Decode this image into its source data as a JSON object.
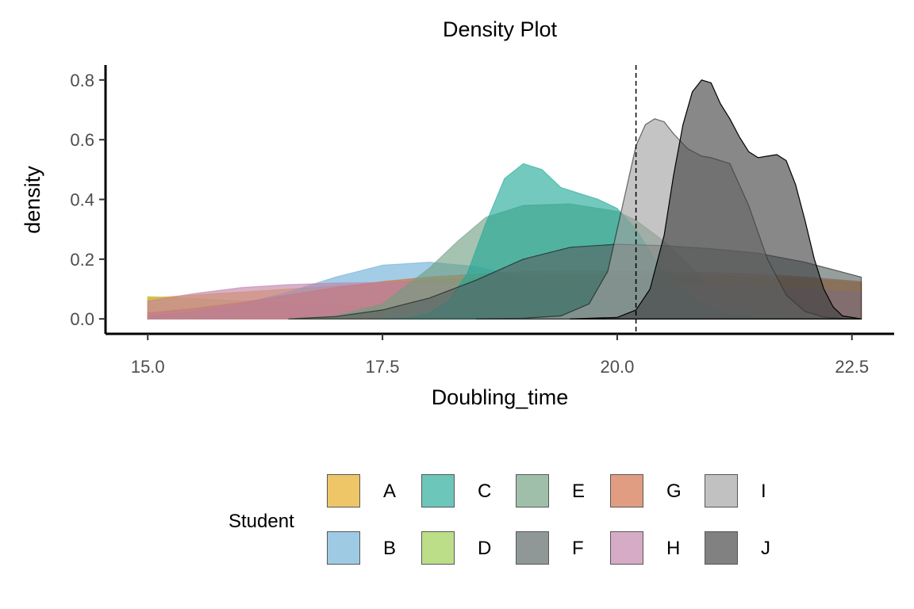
{
  "chart_data": {
    "type": "area",
    "title": "Density Plot",
    "xlabel": "Doubling_time",
    "ylabel": "density",
    "xlim": [
      14.55,
      22.95
    ],
    "ylim": [
      -0.05,
      0.85
    ],
    "xticks": [
      15.0,
      17.5,
      20.0,
      22.5
    ],
    "xtick_labels": [
      "15.0",
      "17.5",
      "20.0",
      "22.5"
    ],
    "yticks": [
      0.0,
      0.2,
      0.4,
      0.6,
      0.8
    ],
    "ytick_labels": [
      "0.0",
      "0.2",
      "0.4",
      "0.6",
      "0.8"
    ],
    "reference_line_x": 20.2,
    "grid": false,
    "legend_title": "Student",
    "legend_position": "bottom",
    "series": [
      {
        "name": "A",
        "color": "#E6A817",
        "x": [
          15.0,
          16.0,
          17.0,
          18.0,
          19.0,
          20.0,
          21.0,
          22.0,
          22.6
        ],
        "y": [
          0.07,
          0.09,
          0.11,
          0.13,
          0.145,
          0.15,
          0.145,
          0.135,
          0.12
        ]
      },
      {
        "name": "B",
        "color": "#6BAED6",
        "x": [
          15.0,
          15.5,
          16.0,
          16.5,
          17.0,
          17.5,
          18.0,
          18.5,
          19.0,
          19.5,
          20.0,
          20.5,
          21.0,
          21.5,
          22.0,
          22.6
        ],
        "y": [
          0.01,
          0.025,
          0.05,
          0.09,
          0.14,
          0.18,
          0.19,
          0.175,
          0.14,
          0.09,
          0.05,
          0.02,
          0.008,
          0.002,
          0.0,
          0.0
        ]
      },
      {
        "name": "C",
        "color": "#1EA896",
        "x": [
          17.5,
          17.8,
          18.0,
          18.2,
          18.4,
          18.6,
          18.8,
          19.0,
          19.2,
          19.4,
          19.6,
          19.8,
          20.0,
          20.2,
          20.4,
          20.6,
          20.8,
          21.0,
          21.2,
          21.5,
          22.0,
          22.6
        ],
        "y": [
          0.0,
          0.005,
          0.02,
          0.06,
          0.15,
          0.32,
          0.47,
          0.52,
          0.5,
          0.44,
          0.42,
          0.4,
          0.37,
          0.3,
          0.2,
          0.12,
          0.07,
          0.035,
          0.015,
          0.005,
          0.0,
          0.0
        ]
      },
      {
        "name": "D",
        "color": "#9ACD4A",
        "x": [
          15.0,
          16.0,
          17.0,
          18.0,
          19.0,
          20.0,
          21.0,
          22.0,
          22.6
        ],
        "y": [
          0.075,
          0.06,
          0.045,
          0.03,
          0.02,
          0.012,
          0.006,
          0.003,
          0.002
        ]
      },
      {
        "name": "E",
        "color": "#6E9E7F",
        "x": [
          16.5,
          17.0,
          17.5,
          18.0,
          18.3,
          18.6,
          19.0,
          19.5,
          20.0,
          20.2,
          20.5,
          20.8,
          21.0,
          21.3,
          21.6,
          22.0,
          22.6
        ],
        "y": [
          0.0,
          0.01,
          0.05,
          0.17,
          0.26,
          0.34,
          0.38,
          0.385,
          0.36,
          0.33,
          0.26,
          0.17,
          0.1,
          0.05,
          0.02,
          0.005,
          0.0
        ]
      },
      {
        "name": "F",
        "color": "#566161",
        "x": [
          16.5,
          17.0,
          17.5,
          18.0,
          18.5,
          19.0,
          19.5,
          20.0,
          20.5,
          21.0,
          21.5,
          22.0,
          22.6
        ],
        "y": [
          0.0,
          0.008,
          0.03,
          0.07,
          0.13,
          0.2,
          0.24,
          0.25,
          0.245,
          0.235,
          0.22,
          0.19,
          0.14
        ]
      },
      {
        "name": "G",
        "color": "#D2693E",
        "x": [
          15.0,
          15.5,
          16.0,
          16.5,
          17.0,
          17.5,
          18.0,
          18.5,
          19.0,
          19.5,
          20.0,
          20.5,
          21.0,
          21.5,
          22.0,
          22.6
        ],
        "y": [
          0.02,
          0.035,
          0.055,
          0.08,
          0.105,
          0.125,
          0.14,
          0.15,
          0.158,
          0.16,
          0.16,
          0.158,
          0.155,
          0.15,
          0.14,
          0.125
        ]
      },
      {
        "name": "H",
        "color": "#C07FA8",
        "x": [
          15.0,
          15.5,
          16.0,
          16.5,
          17.0,
          17.5,
          18.0,
          19.0,
          20.0,
          20.5,
          21.0,
          21.5,
          22.0,
          22.6
        ],
        "y": [
          0.06,
          0.085,
          0.105,
          0.115,
          0.12,
          0.122,
          0.12,
          0.115,
          0.115,
          0.113,
          0.11,
          0.105,
          0.1,
          0.09
        ]
      },
      {
        "name": "I",
        "color": "#A0A0A0",
        "x": [
          18.5,
          19.0,
          19.4,
          19.7,
          19.9,
          20.0,
          20.1,
          20.2,
          20.3,
          20.4,
          20.5,
          20.6,
          20.75,
          20.9,
          21.0,
          21.2,
          21.4,
          21.6,
          21.8,
          22.0,
          22.2,
          22.4,
          22.6
        ],
        "y": [
          0.0,
          0.002,
          0.01,
          0.05,
          0.16,
          0.3,
          0.44,
          0.58,
          0.65,
          0.67,
          0.66,
          0.62,
          0.57,
          0.545,
          0.54,
          0.52,
          0.38,
          0.2,
          0.08,
          0.025,
          0.006,
          0.001,
          0.0
        ]
      },
      {
        "name": "J",
        "color": "#3F3F3F",
        "x": [
          19.5,
          20.0,
          20.2,
          20.35,
          20.5,
          20.6,
          20.7,
          20.8,
          20.9,
          21.0,
          21.1,
          21.2,
          21.3,
          21.4,
          21.5,
          21.6,
          21.7,
          21.8,
          21.9,
          22.0,
          22.1,
          22.2,
          22.3,
          22.4,
          22.6
        ],
        "y": [
          0.0,
          0.005,
          0.03,
          0.1,
          0.28,
          0.48,
          0.65,
          0.76,
          0.8,
          0.79,
          0.72,
          0.67,
          0.61,
          0.56,
          0.54,
          0.545,
          0.55,
          0.53,
          0.45,
          0.33,
          0.2,
          0.1,
          0.04,
          0.01,
          0.0
        ]
      }
    ]
  }
}
